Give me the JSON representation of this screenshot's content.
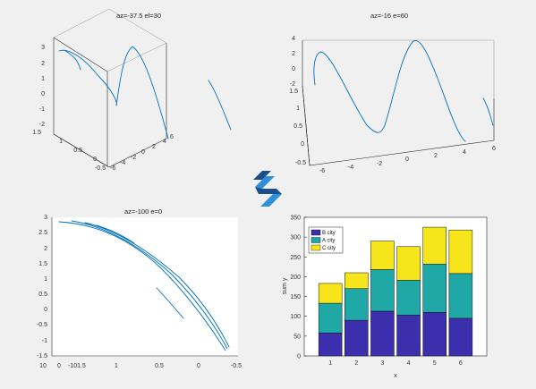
{
  "colors": {
    "curve": "#0072bd",
    "bar_b": "#3b2fae",
    "bar_a": "#1fa8a6",
    "bar_c": "#f5e51a",
    "logo_dark": "#1a4f8a",
    "logo_light": "#2f8fd8",
    "plot_bg": "#ffffff"
  },
  "logo": {
    "icon": "s-logo-icon"
  },
  "chart_data": [
    {
      "type": "line",
      "projection": "3d",
      "title": "az=-37.5 el=30",
      "x_ticks": [
        "-6",
        "-4",
        "-2",
        "0",
        "2",
        "4",
        "6"
      ],
      "y_ticks": [
        "-0.5",
        "0",
        "0.5",
        "1",
        "1.5"
      ],
      "z_ticks": [
        "-2",
        "-1",
        "0",
        "1",
        "2",
        "3"
      ],
      "xlim": [
        -6,
        6
      ],
      "ylim": [
        -0.5,
        1.5
      ],
      "zlim": [
        -2,
        3
      ]
    },
    {
      "type": "line",
      "projection": "3d",
      "title": "az=-16 e=60",
      "x_ticks": [
        "-6",
        "-4",
        "-2",
        "0",
        "2",
        "4",
        "6"
      ],
      "y_ticks": [
        "-0.5",
        "0",
        "0.5",
        "1",
        "1.5"
      ],
      "z_ticks": [
        "-2",
        "0",
        "2",
        "4"
      ],
      "xlim": [
        -6,
        6
      ],
      "ylim": [
        -0.5,
        1.5
      ],
      "zlim": [
        -2,
        4
      ]
    },
    {
      "type": "line",
      "projection": "3d",
      "title": "az=-100 e=0",
      "z_ticks": [
        "-1.5",
        "-1",
        "-0.5",
        "0",
        "0.5",
        "1",
        "1.5",
        "2",
        "2.5",
        "3"
      ],
      "h_ticks": [
        "10",
        "0",
        "-101.5",
        "1",
        "0.5",
        "0",
        "-0.5"
      ],
      "zlim": [
        -1.5,
        3
      ]
    },
    {
      "type": "bar",
      "stacked": true,
      "categories": [
        "1",
        "2",
        "3",
        "4",
        "5",
        "6"
      ],
      "series": [
        {
          "name": "B city",
          "values": [
            58,
            90,
            113,
            103,
            110,
            95
          ]
        },
        {
          "name": "A city",
          "values": [
            75,
            80,
            105,
            88,
            122,
            113
          ]
        },
        {
          "name": "C city",
          "values": [
            50,
            40,
            72,
            85,
            93,
            110
          ]
        }
      ],
      "xlabel": "x",
      "ylabel": "sum y",
      "ylim": [
        0,
        350
      ],
      "y_ticks": [
        "0",
        "50",
        "100",
        "150",
        "200",
        "250",
        "300",
        "350"
      ],
      "legend_position": "top-left"
    }
  ]
}
